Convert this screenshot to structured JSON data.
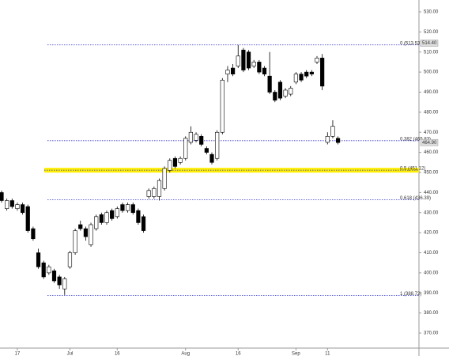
{
  "chart_data": {
    "type": "candlestick",
    "categories": [
      null,
      null,
      null,
      "17",
      null,
      null,
      null,
      null,
      null,
      null,
      null,
      null,
      null,
      "Jul",
      null,
      null,
      null,
      null,
      null,
      null,
      null,
      null,
      "16",
      null,
      null,
      null,
      null,
      null,
      null,
      null,
      null,
      null,
      null,
      null,
      null,
      "Aug",
      null,
      null,
      null,
      null,
      null,
      null,
      null,
      null,
      null,
      "16",
      null,
      null,
      null,
      null,
      null,
      null,
      null,
      null,
      null,
      null,
      "Sep",
      null,
      null,
      null,
      null,
      null,
      "11",
      null,
      null
    ],
    "open": [
      440,
      432,
      436,
      432,
      434,
      433,
      422,
      410,
      405,
      400,
      401,
      398,
      392,
      403,
      410,
      424,
      422,
      414,
      422,
      429,
      425,
      431,
      428,
      434,
      431,
      434,
      431,
      428,
      438,
      438,
      438,
      442,
      451,
      457,
      455,
      457,
      465,
      466,
      468,
      462,
      459,
      457,
      470,
      499,
      502,
      503,
      511,
      510,
      503,
      505,
      502,
      498,
      490,
      495,
      488,
      489,
      495,
      499,
      500,
      500,
      505,
      507,
      465,
      468,
      467
    ],
    "high": [
      441,
      437,
      437,
      435,
      435,
      434,
      423,
      412,
      406,
      404,
      402,
      399,
      398,
      411,
      422,
      426,
      423,
      425,
      429,
      430,
      431,
      432,
      433,
      435,
      435,
      435,
      432,
      429,
      442,
      443,
      447,
      453,
      457,
      458,
      458,
      468,
      473,
      470,
      469,
      463,
      460,
      471,
      497,
      503,
      504,
      513.5,
      512,
      511,
      506,
      506,
      503,
      510,
      491,
      496,
      492,
      493,
      500,
      500,
      501,
      501,
      508,
      509,
      470,
      476,
      468
    ],
    "low": [
      435,
      431,
      432,
      431,
      429,
      420,
      416,
      402,
      397,
      399,
      395,
      392,
      389,
      402,
      409,
      421,
      416,
      413,
      421,
      424,
      424,
      426,
      427,
      430,
      430,
      429,
      424,
      420,
      437,
      437,
      436,
      441,
      450,
      452,
      454,
      456,
      464,
      465,
      463,
      459,
      454,
      456,
      469,
      495,
      498,
      502,
      500,
      501,
      502,
      499,
      498,
      489,
      485,
      486,
      487,
      488,
      494,
      495,
      497,
      498,
      504,
      491,
      464,
      467,
      464
    ],
    "close": [
      436,
      436,
      433,
      434,
      430,
      421,
      417,
      403,
      398,
      403,
      396,
      394,
      397,
      410,
      421,
      422,
      418,
      424,
      428,
      425,
      430,
      427,
      432,
      431,
      434,
      430,
      425,
      421,
      441,
      442,
      446,
      452,
      456,
      453,
      457,
      467,
      470,
      469,
      464,
      460,
      455,
      470,
      496,
      501,
      499,
      508,
      501,
      502,
      505,
      500,
      499,
      490,
      486,
      487,
      491,
      492,
      499,
      496,
      498,
      499,
      507,
      493,
      468,
      473,
      464.9
    ],
    "ylim": [
      365,
      535
    ],
    "yticks": [
      {
        "value": 370,
        "label": "370.00"
      },
      {
        "value": 380,
        "label": "380.00"
      },
      {
        "value": 390,
        "label": "390.00"
      },
      {
        "value": 400,
        "label": "400.00"
      },
      {
        "value": 410,
        "label": "410.00"
      },
      {
        "value": 420,
        "label": "420.00"
      },
      {
        "value": 430,
        "label": "430.00"
      },
      {
        "value": 440,
        "label": "440.00"
      },
      {
        "value": 450,
        "label": "450.00"
      },
      {
        "value": 460,
        "label": "460.00"
      },
      {
        "value": 470,
        "label": "470.00"
      },
      {
        "value": 480,
        "label": "480.00"
      },
      {
        "value": 490,
        "label": "490.00"
      },
      {
        "value": 500,
        "label": "500.00"
      },
      {
        "value": 510,
        "label": "510.00"
      },
      {
        "value": 520,
        "label": "520.00"
      },
      {
        "value": 530,
        "label": "530.00"
      }
    ],
    "levels": [
      {
        "value": 513.53,
        "label": "0 (513.53)"
      },
      {
        "value": 465.83,
        "label": "0.382 (465.83)"
      },
      {
        "value": 451.12,
        "label": "0.5 (451.12)",
        "highlight": true
      },
      {
        "value": 436.39,
        "label": "0.618 (436.39)"
      },
      {
        "value": 388.72,
        "label": "1 (388.72)"
      }
    ],
    "level_color": "#3333cc",
    "price_markers": [
      {
        "value": 514.4,
        "label": "514.40"
      },
      {
        "value": 464.9,
        "label": "464.90"
      }
    ]
  }
}
